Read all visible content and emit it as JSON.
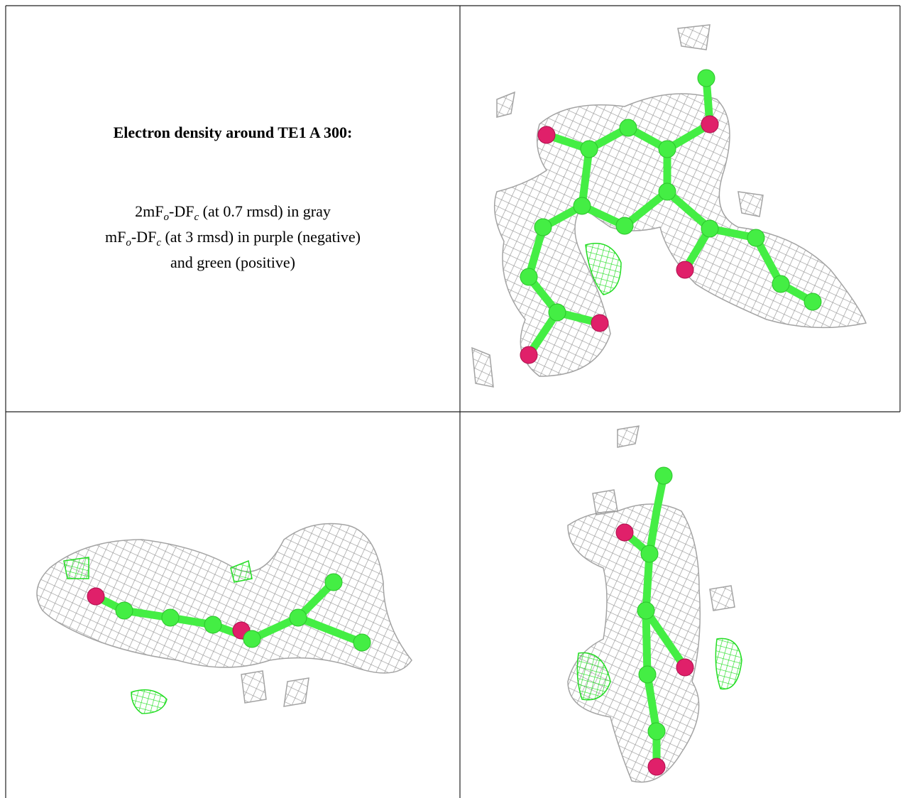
{
  "caption": {
    "title": "Electron density around TE1 A 300:",
    "lines": [
      [
        "2mF",
        "o",
        "-DF",
        "c",
        " (at 0.7 rmsd) in gray"
      ],
      [
        "mF",
        "o",
        "-DF",
        "c",
        " (at 3 rmsd) in purple (negative)"
      ],
      [
        "and green (positive)"
      ]
    ]
  }
}
